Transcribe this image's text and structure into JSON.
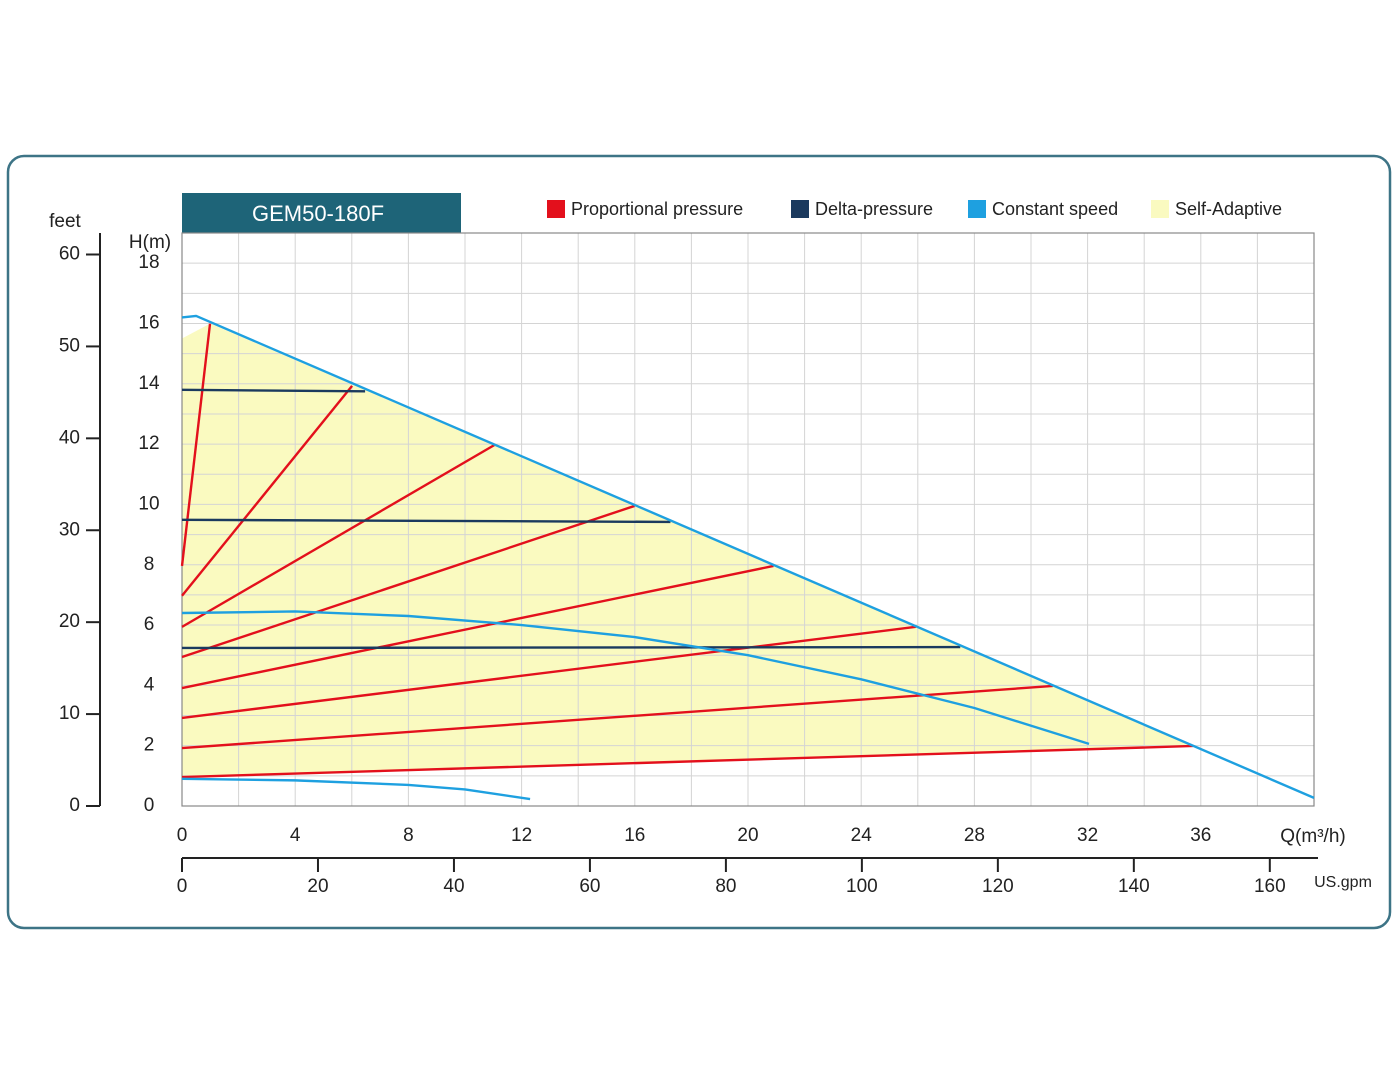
{
  "chart_data": {
    "type": "line",
    "title": "GEM50-180F",
    "x_label": "Q(m³/h)",
    "y_label": "H(m)",
    "y2_label": "feet",
    "x2_label": "US.gpm",
    "xlim": [
      0,
      40
    ],
    "ylim": [
      0,
      19
    ],
    "y2lim": [
      0,
      62.34
    ],
    "x2lim": [
      0,
      166.5
    ],
    "xticks": [
      0,
      4,
      8,
      12,
      16,
      20,
      24,
      28,
      32,
      36
    ],
    "yticks": [
      0,
      2,
      4,
      6,
      8,
      10,
      12,
      14,
      16,
      18
    ],
    "y2ticks": [
      0,
      10,
      20,
      30,
      40,
      50,
      60
    ],
    "x2ticks": [
      0,
      20,
      40,
      60,
      80,
      100,
      120,
      140,
      160
    ],
    "grid": true,
    "xgrid": [
      2,
      4,
      6,
      8,
      10,
      12,
      14,
      16,
      18,
      20,
      22,
      24,
      26,
      28,
      30,
      32,
      34,
      36,
      38
    ],
    "ygrid": [
      1,
      2,
      3,
      4,
      5,
      6,
      7,
      8,
      9,
      10,
      11,
      12,
      13,
      14,
      15,
      16,
      17,
      18
    ],
    "series": [
      {
        "name": "Proportional pressure",
        "color": "#e3101c",
        "lines": [
          {
            "x": [
              0,
              0.99
            ],
            "values": [
              7.96,
              15.99
            ]
          },
          {
            "x": [
              0,
              6.01
            ],
            "values": [
              6.97,
              13.93
            ]
          },
          {
            "x": [
              0,
              11.04
            ],
            "values": [
              5.94,
              11.97
            ]
          },
          {
            "x": [
              0,
              15.99
            ],
            "values": [
              4.94,
              9.95
            ]
          },
          {
            "x": [
              0,
              20.9
            ],
            "values": [
              3.91,
              7.96
            ]
          },
          {
            "x": [
              0,
              25.93
            ],
            "values": [
              2.92,
              5.94
            ]
          },
          {
            "x": [
              0,
              30.77
            ],
            "values": [
              1.92,
              3.98
            ]
          },
          {
            "x": [
              0,
              35.73
            ],
            "values": [
              0.96,
              1.99
            ]
          }
        ]
      },
      {
        "name": "Delta-pressure",
        "color": "#1b3a5e",
        "lines": [
          {
            "x": [
              0,
              6.47
            ],
            "values": [
              13.8,
              13.75
            ]
          },
          {
            "x": [
              0,
              17.26
            ],
            "values": [
              9.49,
              9.42
            ]
          },
          {
            "x": [
              0,
              27.5
            ],
            "values": [
              5.24,
              5.27
            ]
          }
        ]
      },
      {
        "name": "Constant speed",
        "color": "#1ea0e0",
        "lines": [
          {
            "x": [
              0,
              0.5,
              40
            ],
            "values": [
              16.2,
              16.25,
              0.27
            ]
          },
          {
            "x": [
              0,
              4,
              8,
              12,
              16,
              20,
              24,
              28,
              32.05
            ],
            "values": [
              6.4,
              6.45,
              6.3,
              6.0,
              5.6,
              5.0,
              4.2,
              3.25,
              2.06
            ]
          },
          {
            "x": [
              0,
              4,
              8,
              10,
              12.3
            ],
            "values": [
              0.9,
              0.85,
              0.7,
              0.55,
              0.23
            ]
          }
        ]
      },
      {
        "name": "Self-Adaptive",
        "color": "#fafac0",
        "fill": true,
        "lines": [
          {
            "x": [
              0,
              35.73,
              1,
              0
            ],
            "values": [
              0.96,
              1.99,
              16,
              15.5
            ]
          }
        ]
      }
    ]
  }
}
